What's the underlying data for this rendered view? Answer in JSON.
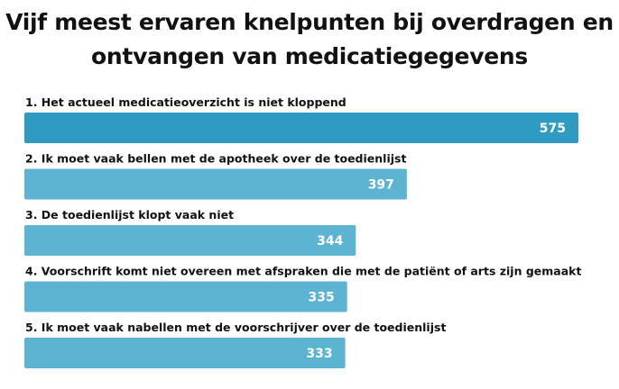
{
  "title": "Vijf meest ervaren knelpunten bij overdragen en ontvangen van medicatiegegevens",
  "colors": {
    "bar_primary": "#2f9bc0",
    "bar_secondary": "#5db3d2",
    "value_text": "#ffffff",
    "label_text": "#111111"
  },
  "chart_data": {
    "type": "bar",
    "orientation": "horizontal",
    "title": "Vijf meest ervaren knelpunten bij overdragen en ontvangen van medicatiegegevens",
    "categories": [
      "1. Het actueel medicatieoverzicht is niet kloppend",
      "2. Ik moet vaak bellen met de apotheek over de toedienlijst",
      "3. De toedienlijst klopt vaak niet",
      "4. Voorschrift komt niet overeen met afspraken die met de patiënt of arts zijn gemaakt",
      "5. Ik moet vaak nabellen met de voorschrijver over de toedienlijst"
    ],
    "values": [
      575,
      397,
      344,
      335,
      333
    ],
    "xlim": [
      0,
      575
    ],
    "grid": false,
    "legend": "none"
  }
}
